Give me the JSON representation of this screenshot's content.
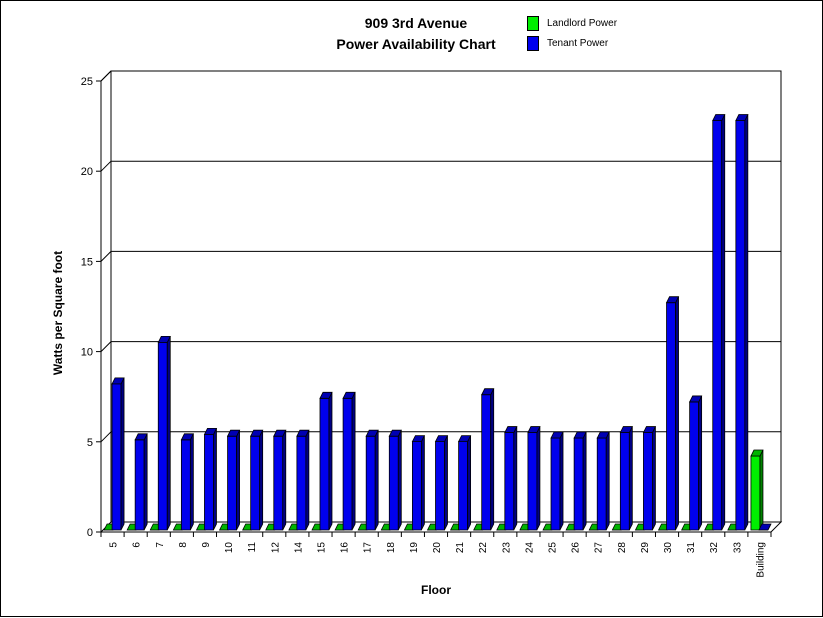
{
  "chart_data": {
    "type": "bar",
    "title": [
      "909 3rd Avenue",
      "Power Availability Chart"
    ],
    "xlabel": "Floor",
    "ylabel": "Watts per Square foot",
    "ylim": [
      0,
      25
    ],
    "yticks": [
      0,
      5,
      10,
      15,
      20,
      25
    ],
    "grid": true,
    "legend_position": "top-right",
    "categories": [
      "5",
      "6",
      "7",
      "8",
      "9",
      "10",
      "11",
      "12",
      "14",
      "15",
      "16",
      "17",
      "18",
      "19",
      "20",
      "21",
      "22",
      "23",
      "24",
      "25",
      "26",
      "27",
      "28",
      "29",
      "30",
      "31",
      "32",
      "33",
      "Building"
    ],
    "series": [
      {
        "name": "Landlord Power",
        "color": "#00ee00",
        "values": [
          0,
          0,
          0,
          0,
          0,
          0,
          0,
          0,
          0,
          0,
          0,
          0,
          0,
          0,
          0,
          0,
          0,
          0,
          0,
          0,
          0,
          0,
          0,
          0,
          0,
          0,
          0,
          0,
          4.1
        ]
      },
      {
        "name": "Tenant Power",
        "color": "#0000ee",
        "values": [
          8.1,
          5,
          10.4,
          5,
          5.3,
          5.2,
          5.2,
          5.2,
          5.2,
          7.3,
          7.3,
          5.2,
          5.2,
          4.9,
          4.9,
          4.9,
          7.5,
          5.4,
          5.4,
          5.1,
          5.1,
          5.1,
          5.4,
          5.4,
          12.6,
          7.1,
          22.7,
          22.7,
          0
        ]
      }
    ]
  }
}
